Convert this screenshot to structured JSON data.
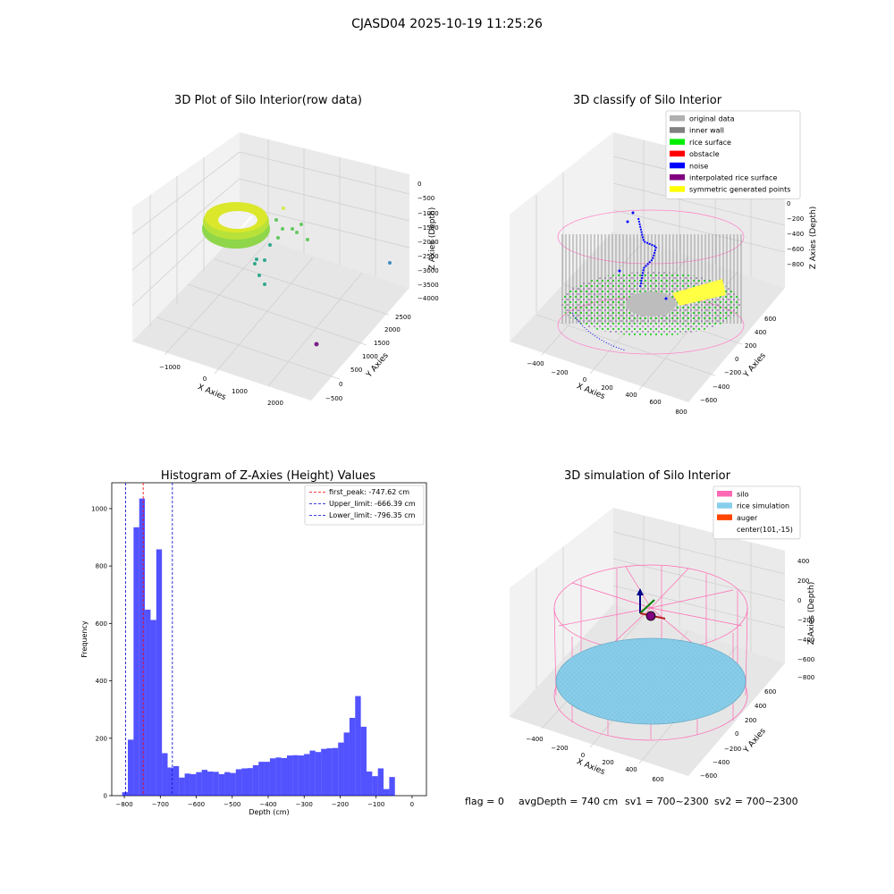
{
  "figure": {
    "suptitle": "CJASD04 2025-10-19 11:25:26",
    "footer": {
      "flag": "flag = 0",
      "avg_depth": "avgDepth = 740 cm",
      "sv1": "sv1 = 700~2300",
      "sv2": "sv2 = 700~2300"
    }
  },
  "panel_raw": {
    "title": "3D Plot of Silo Interior(row data)",
    "xlabel": "X Axies",
    "ylabel": "Y Axies",
    "zlabel": "Z Axies (Depth)",
    "xticks": [
      "−1000",
      "0",
      "1000",
      "2000"
    ],
    "yticks": [
      "−500",
      "0",
      "500",
      "1000",
      "1500",
      "2000",
      "2500"
    ],
    "zticks": [
      "0",
      "−500",
      "−1000",
      "−1500",
      "−2000",
      "−2500",
      "−3000",
      "−3500",
      "−4000"
    ]
  },
  "panel_classify": {
    "title": "3D classify of Silo Interior",
    "xlabel": "X Axies",
    "ylabel": "Y Axies",
    "zlabel": "Z Axies (Depth)",
    "xticks": [
      "−400",
      "−200",
      "0",
      "200",
      "400",
      "600",
      "800"
    ],
    "yticks": [
      "−600",
      "−400",
      "−200",
      "0",
      "200",
      "400",
      "600"
    ],
    "zticks": [
      "200",
      "0",
      "−200",
      "−400",
      "−600",
      "−800"
    ],
    "legend": [
      {
        "label": "original data",
        "color": "#b0b0b0"
      },
      {
        "label": "inner wall",
        "color": "#808080"
      },
      {
        "label": "rice surface",
        "color": "#00ee00"
      },
      {
        "label": "obstacle",
        "color": "#ff0000"
      },
      {
        "label": "noise",
        "color": "#0000ff"
      },
      {
        "label": "interpolated rice surface",
        "color": "#800080"
      },
      {
        "label": "symmetric generated points",
        "color": "#ffff00"
      }
    ]
  },
  "panel_sim": {
    "title": "3D simulation of Silo Interior",
    "xlabel": "X Axies",
    "ylabel": "Y Axies",
    "zlabel": "Z Axies (Depth)",
    "xticks": [
      "−400",
      "−200",
      "0",
      "200",
      "400",
      "600"
    ],
    "yticks": [
      "−600",
      "−400",
      "−200",
      "0",
      "200",
      "400",
      "600"
    ],
    "zticks": [
      "400",
      "200",
      "0",
      "−200",
      "−400",
      "−600",
      "−800"
    ],
    "legend": [
      {
        "label": "silo",
        "color": "#ff69b4"
      },
      {
        "label": "rice simulation",
        "color": "#87ceeb"
      },
      {
        "label": "auger",
        "color": "#ff4500"
      },
      {
        "label": "center(101,-15)",
        "color": ""
      }
    ]
  },
  "chart_data": {
    "type": "bar",
    "title": "Histogram of Z-Axies (Height) Values",
    "xlabel": "Depth (cm)",
    "ylabel": "Frequency",
    "xlim": [
      -835,
      40
    ],
    "ylim": [
      0,
      1090
    ],
    "bin_width": 15.8,
    "bin_start": -806,
    "values": [
      12,
      195,
      935,
      1035,
      648,
      612,
      858,
      148,
      98,
      103,
      63,
      77,
      75,
      82,
      90,
      84,
      83,
      75,
      82,
      79,
      92,
      95,
      96,
      106,
      118,
      118,
      130,
      133,
      131,
      140,
      141,
      140,
      145,
      157,
      152,
      163,
      165,
      166,
      185,
      220,
      271,
      347,
      240,
      84,
      68,
      95,
      23,
      65
    ],
    "xticks": [
      -800,
      -700,
      -600,
      -500,
      -400,
      -300,
      -200,
      -100,
      0
    ],
    "xtick_labels": [
      "−800",
      "−700",
      "−600",
      "−500",
      "−400",
      "−300",
      "−200",
      "−100",
      "0"
    ],
    "yticks": [
      0,
      200,
      400,
      600,
      800,
      1000
    ],
    "ytick_labels": [
      "0",
      "200",
      "400",
      "600",
      "800",
      "1000"
    ],
    "bar_color": "#0000ff",
    "lines": [
      {
        "label": "first_peak: -747.62 cm",
        "x": -747.62,
        "color": "#ff0000"
      },
      {
        "label": "Upper_limit: -666.39 cm",
        "x": -666.39,
        "color": "#0000cc"
      },
      {
        "label": "Lower_limit: -796.35 cm",
        "x": -796.35,
        "color": "#0000cc"
      }
    ],
    "legend_position": "top-right",
    "grid": false
  }
}
